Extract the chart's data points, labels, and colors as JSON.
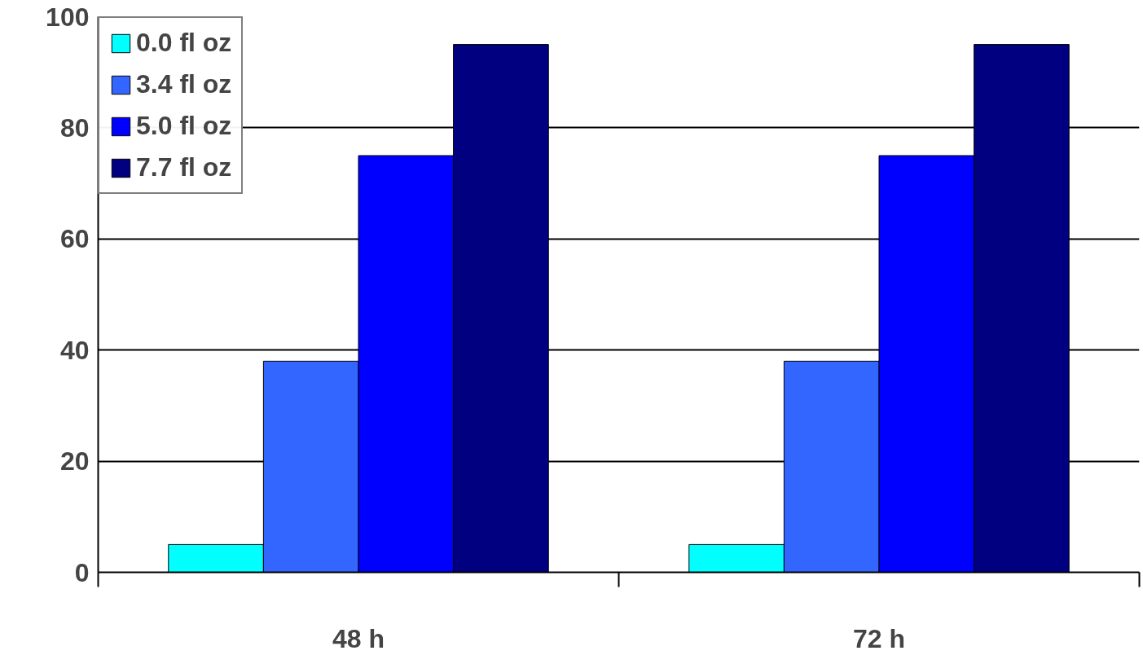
{
  "chart_data": {
    "type": "bar",
    "categories": [
      "48 h",
      "72 h"
    ],
    "series": [
      {
        "name": "0.0 fl oz",
        "color": "#00ffff",
        "values": [
          5,
          5
        ]
      },
      {
        "name": "3.4 fl oz",
        "color": "#3366ff",
        "values": [
          38,
          38
        ]
      },
      {
        "name": "5.0 fl oz",
        "color": "#0000ff",
        "values": [
          75,
          75
        ]
      },
      {
        "name": "7.7 fl oz",
        "color": "#000080",
        "values": [
          95,
          95
        ]
      }
    ],
    "ylim": [
      0,
      100
    ],
    "yticks": [
      0,
      20,
      40,
      60,
      80,
      100
    ],
    "grid": "y",
    "legend": "top left"
  }
}
